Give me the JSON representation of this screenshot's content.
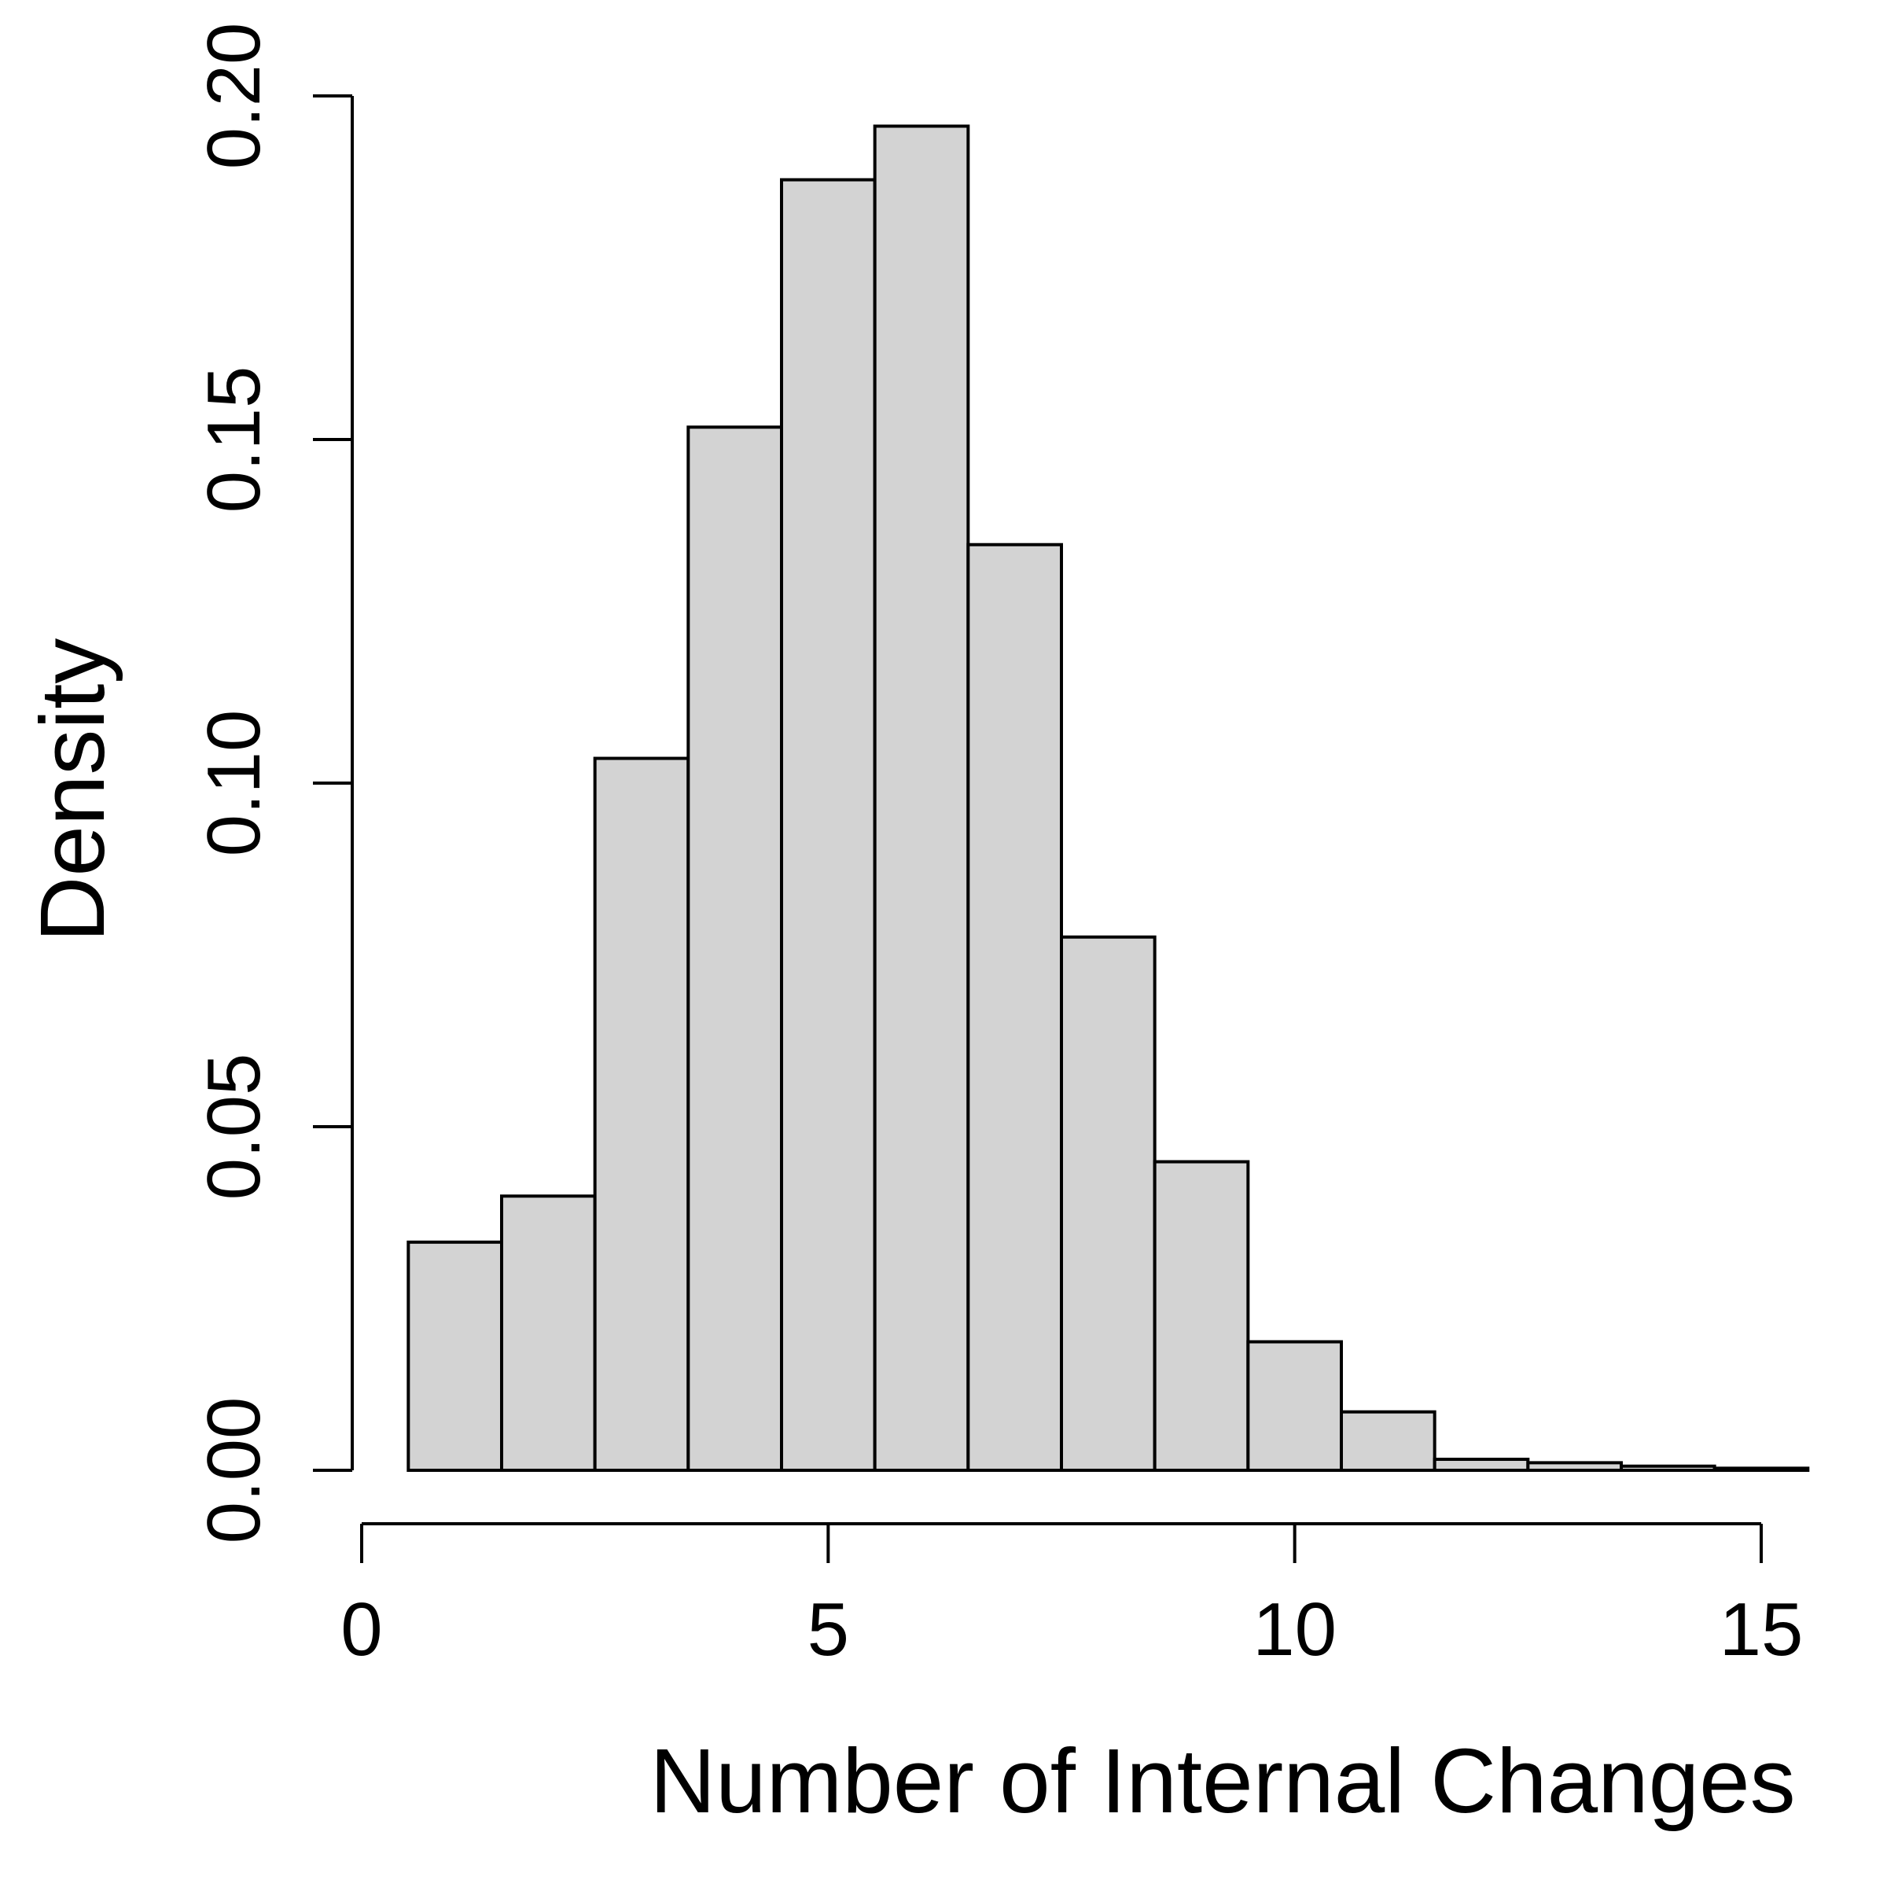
{
  "chart_data": {
    "type": "bar",
    "subtype": "histogram",
    "xlabel": "Number of Internal Changes",
    "ylabel": "Density",
    "xlim": [
      0,
      15
    ],
    "ylim": [
      0,
      0.2
    ],
    "x_ticks": [
      0,
      5,
      10,
      15
    ],
    "x_tick_labels": [
      "0",
      "5",
      "10",
      "15"
    ],
    "y_ticks": [
      0,
      0.05,
      0.1,
      0.15,
      0.2
    ],
    "y_tick_labels": [
      "0.00",
      "0.05",
      "0.10",
      "0.15",
      "0.20"
    ],
    "bin_edges": [
      0.5,
      1.5,
      2.5,
      3.5,
      4.5,
      5.5,
      6.5,
      7.5,
      8.5,
      9.5,
      10.5,
      11.5,
      12.5,
      13.5,
      14.5,
      15.5
    ],
    "values": [
      0.0332,
      0.0399,
      0.1036,
      0.1518,
      0.1878,
      0.1956,
      0.1347,
      0.0776,
      0.0449,
      0.0187,
      0.0085,
      0.0016,
      0.0011,
      0.0006,
      0.0003
    ],
    "bar_color": "#d3d3d3",
    "edge_color": "#000000",
    "grid": false
  }
}
